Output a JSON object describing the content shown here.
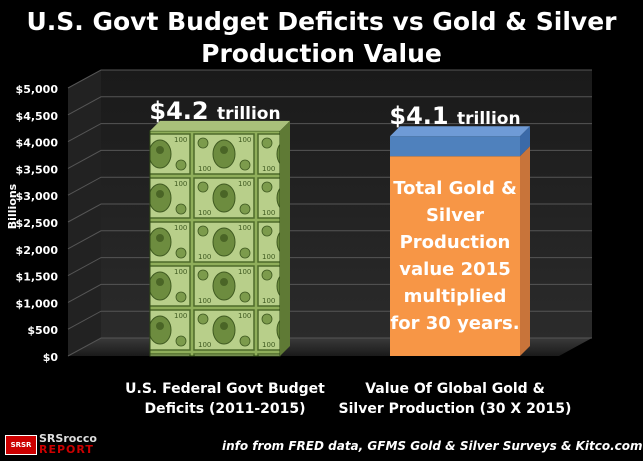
{
  "title_line1": "U.S. Govt Budget Deficits vs Gold & Silver",
  "title_line2": "Production Value",
  "footer": "info from FRED data, GFMS Gold & Silver Surveys & Kitco.com",
  "logo": {
    "line1": "SRSrocco",
    "line2": "REPORT",
    "badge": "SRSR"
  },
  "colors": {
    "dollar_bills": "#8fae5a",
    "orange_bar": "#f79646",
    "blue_top": "#4f81bd"
  },
  "chart_data": {
    "type": "bar",
    "ylabel": "Billions",
    "ylim": [
      0,
      5000
    ],
    "yticks": [
      "$0",
      "$500",
      "$1,000",
      "$1,500",
      "$2,000",
      "$2,500",
      "$3,000",
      "$3,500",
      "$4,000",
      "$4,500",
      "$5,000"
    ],
    "ytick_values": [
      0,
      500,
      1000,
      1500,
      2000,
      2500,
      3000,
      3500,
      4000,
      4500,
      5000
    ],
    "categories": [
      "U.S. Federal Govt Budget Deficits (2011-2015)",
      "Value Of Global Gold & Silver Production (30 X 2015)"
    ],
    "category_lines": [
      [
        "U.S. Federal Govt Budget",
        "Deficits (2011-2015)"
      ],
      [
        "Value Of Global Gold &",
        "Silver Production (30 X 2015)"
      ]
    ],
    "values": [
      4200,
      4100
    ],
    "value_labels": [
      {
        "big": "$4.2",
        "small": "trillion"
      },
      {
        "big": "$4.1",
        "small": "trillion"
      }
    ],
    "annotation_lines": [
      "Total Gold &",
      "Silver",
      "Production",
      "value 2015",
      "multiplied",
      "for 30 years."
    ]
  }
}
